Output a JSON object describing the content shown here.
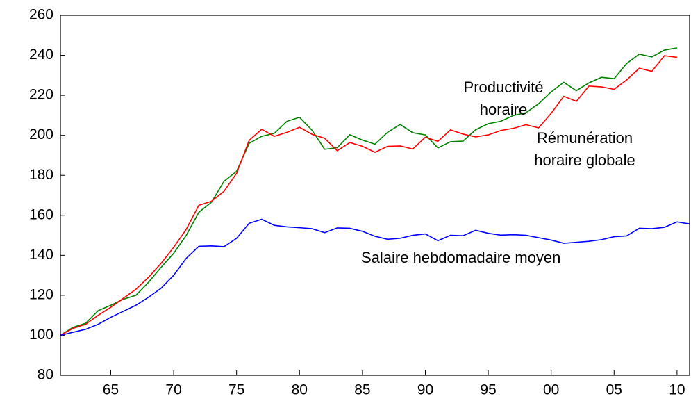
{
  "chart_data": {
    "type": "line",
    "x": [
      1961,
      1962,
      1963,
      1964,
      1965,
      1966,
      1967,
      1968,
      1969,
      1970,
      1971,
      1972,
      1973,
      1974,
      1975,
      1976,
      1977,
      1978,
      1979,
      1980,
      1981,
      1982,
      1983,
      1984,
      1985,
      1986,
      1987,
      1988,
      1989,
      1990,
      1991,
      1992,
      1993,
      1994,
      1995,
      1996,
      1997,
      1998,
      1999,
      2000,
      2001,
      2002,
      2003,
      2004,
      2005,
      2006,
      2007,
      2008,
      2009,
      2010,
      2011
    ],
    "series": [
      {
        "name": [
          "Productivité",
          "horaire"
        ],
        "color": "#008000",
        "values": [
          100,
          104,
          106,
          112.3,
          115,
          118,
          120,
          126.5,
          134,
          141,
          150,
          161.5,
          166.5,
          177,
          182,
          196,
          199.5,
          201,
          207,
          209,
          202.5,
          193,
          193.8,
          200.3,
          197.6,
          195.6,
          201.5,
          205.4,
          201.3,
          200.2,
          193.7,
          196.8,
          197.1,
          202.8,
          205.8,
          207,
          209.9,
          211.3,
          215.8,
          221.7,
          226.5,
          222.3,
          226.2,
          229,
          228.3,
          235.9,
          240.6,
          239.2,
          242.6,
          243.7,
          null
        ]
      },
      {
        "name": [
          "Rémunération",
          "horaire globale"
        ],
        "color": "#ff0000",
        "values": [
          100,
          103.5,
          105.5,
          110,
          114,
          118.5,
          123,
          129,
          136,
          144,
          153,
          165,
          167,
          172,
          181,
          197.5,
          203,
          199.5,
          201.5,
          204,
          200.5,
          198.5,
          192.3,
          196.4,
          194.5,
          191.5,
          194.5,
          194.7,
          193.2,
          199,
          197,
          202.7,
          200.6,
          199.2,
          200.2,
          202.4,
          203.5,
          205.3,
          203.7,
          211,
          219.5,
          217,
          224.6,
          224.2,
          223,
          227.7,
          233.5,
          232,
          239.8,
          239,
          null
        ]
      },
      {
        "name": [
          "Salaire hebdomadaire moyen"
        ],
        "color": "#0000ff",
        "values": [
          100,
          101.5,
          103,
          105.5,
          109,
          112,
          115,
          119,
          123.5,
          130,
          138.5,
          144.5,
          144.7,
          144.3,
          148.5,
          156,
          158,
          155,
          154.2,
          153.8,
          153.3,
          151.3,
          153.7,
          153.5,
          152,
          149.5,
          148,
          148.5,
          150,
          150.7,
          147.3,
          150,
          149.8,
          152.5,
          151,
          150.1,
          150.3,
          150,
          148.8,
          147.6,
          146,
          146.5,
          147,
          147.8,
          149.3,
          149.7,
          153.5,
          153.3,
          154,
          156.7,
          155.7
        ]
      }
    ],
    "xlim": [
      1961,
      2011
    ],
    "xticks": [
      {
        "value": 1965,
        "label": "65"
      },
      {
        "value": 1970,
        "label": "70"
      },
      {
        "value": 1975,
        "label": "75"
      },
      {
        "value": 1980,
        "label": "80"
      },
      {
        "value": 1985,
        "label": "85"
      },
      {
        "value": 1990,
        "label": "90"
      },
      {
        "value": 1995,
        "label": "95"
      },
      {
        "value": 2000,
        "label": "00"
      },
      {
        "value": 2005,
        "label": "05"
      },
      {
        "value": 2010,
        "label": "10"
      }
    ],
    "ylim": [
      80,
      260
    ],
    "yticks": [
      80,
      100,
      120,
      140,
      160,
      180,
      200,
      220,
      240,
      260
    ]
  }
}
